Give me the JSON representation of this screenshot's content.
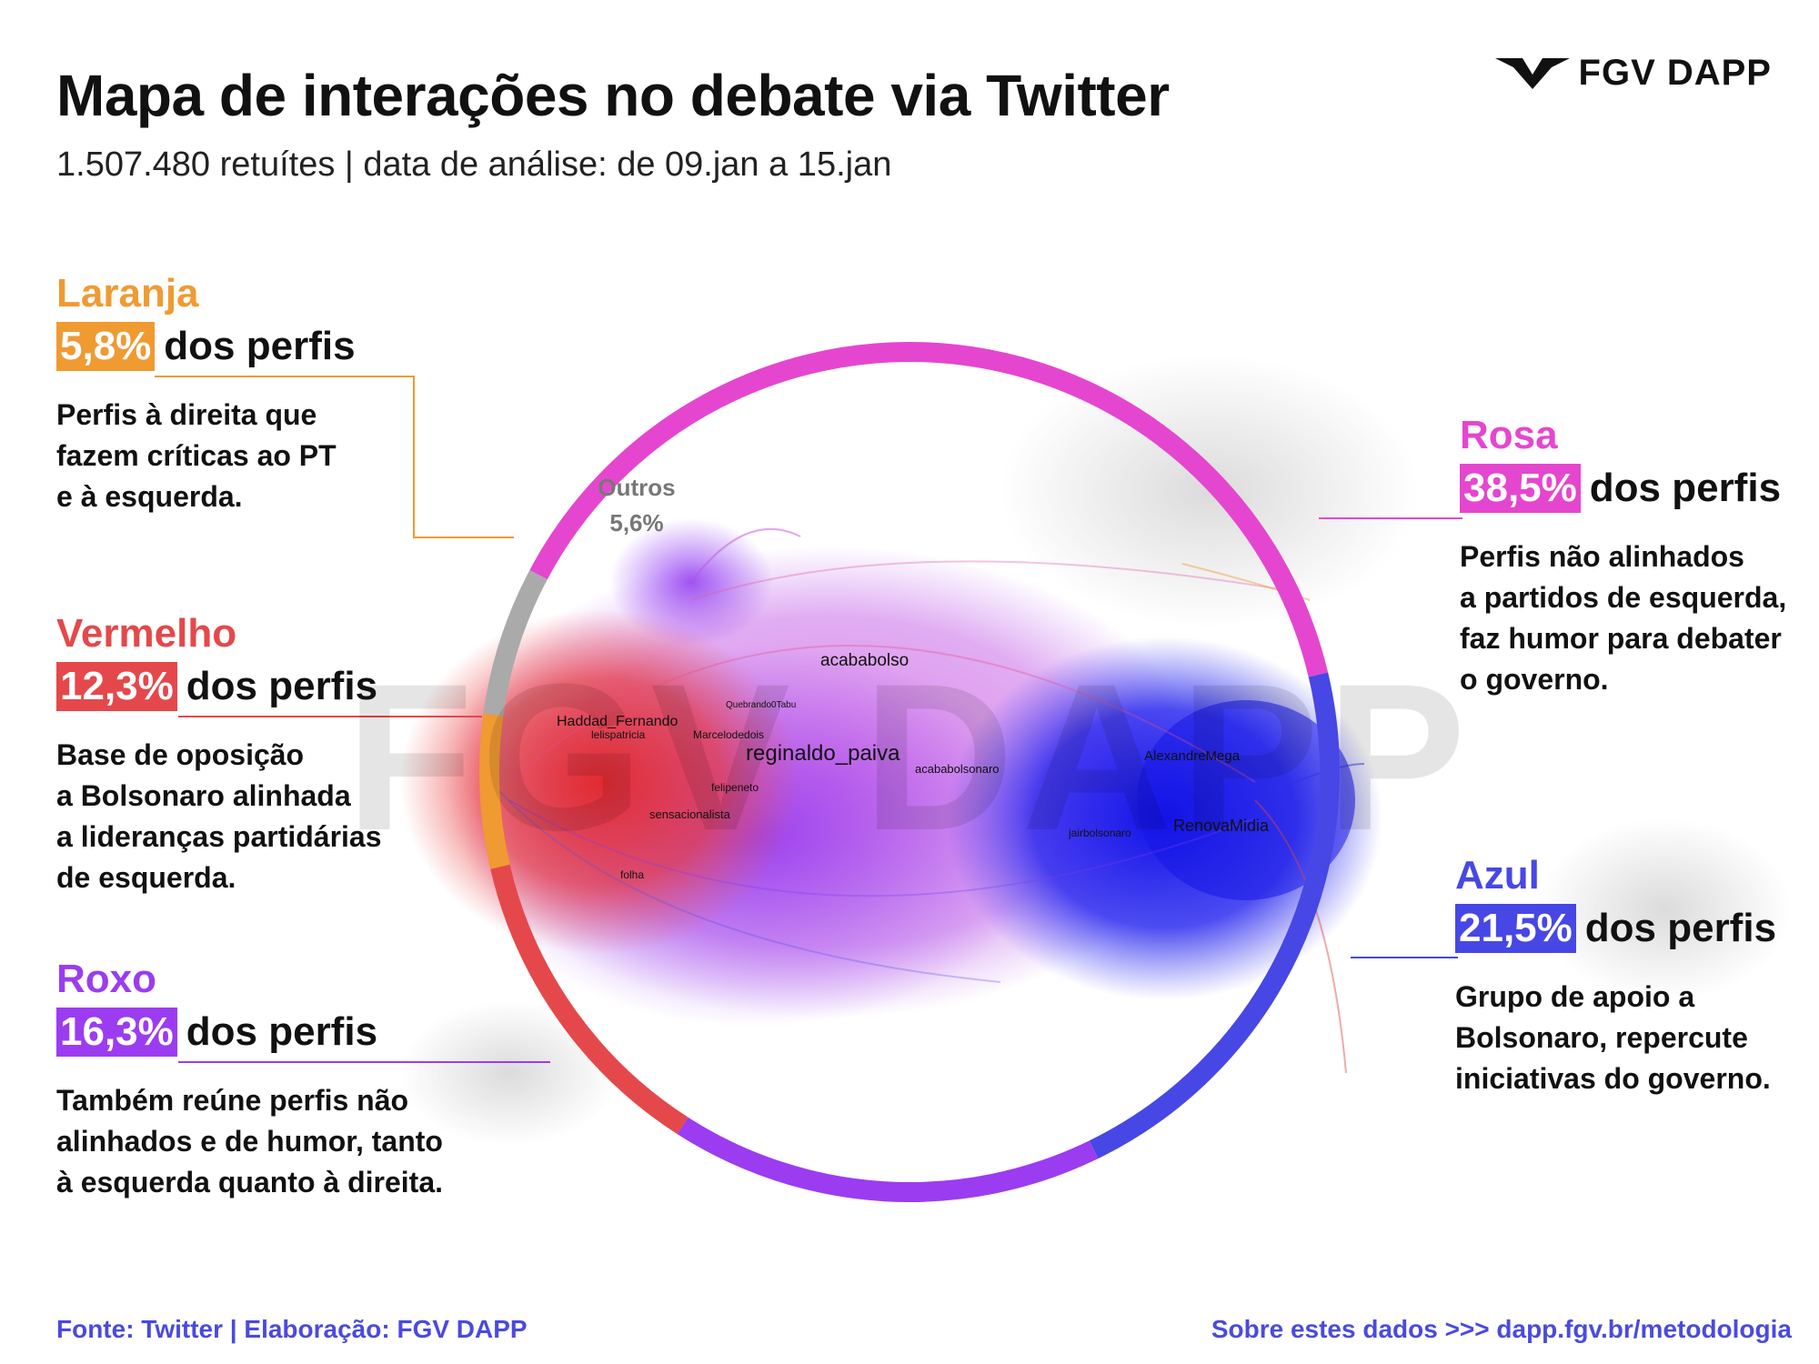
{
  "header": {
    "title": "Mapa de interações no debate via Twitter",
    "subtitle": "1.507.480 retuítes | data de análise: de 09.jan a 15.jan"
  },
  "logo": {
    "text": "FGV DAPP"
  },
  "watermark": {
    "text": "FGV DAPP"
  },
  "ring": {
    "segments": [
      {
        "name": "Rosa",
        "color": "#e546cf",
        "percent": 38.5
      },
      {
        "name": "Azul",
        "color": "#4747e6",
        "percent": 21.5
      },
      {
        "name": "Roxo",
        "color": "#9b3cf0",
        "percent": 16.3
      },
      {
        "name": "Vermelho",
        "color": "#e5484a",
        "percent": 12.3
      },
      {
        "name": "Laranja",
        "color": "#f09a32",
        "percent": 5.8
      },
      {
        "name": "Outros",
        "color": "#aaaaaa",
        "percent": 5.6
      }
    ],
    "outros_label": "Outros",
    "outros_value": "5,6%"
  },
  "groups": {
    "laranja": {
      "name": "Laranja",
      "percent": "5,8%",
      "suffix": "dos perfis",
      "color": "#f09a32",
      "desc": [
        "Perfis à direita que",
        "fazem críticas ao PT",
        "e à esquerda."
      ]
    },
    "vermelho": {
      "name": "Vermelho",
      "percent": "12,3%",
      "suffix": "dos perfis",
      "color": "#e5484a",
      "desc": [
        "Base de oposição",
        "a Bolsonaro alinhada",
        "a lideranças partidárias",
        "de esquerda."
      ]
    },
    "roxo": {
      "name": "Roxo",
      "percent": "16,3%",
      "suffix": "dos perfis",
      "color": "#9b3cf0",
      "desc": [
        "Também reúne perfis não",
        "alinhados e de humor, tanto",
        "à esquerda quanto à direita."
      ]
    },
    "rosa": {
      "name": "Rosa",
      "percent": "38,5%",
      "suffix": "dos perfis",
      "color": "#e546cf",
      "desc": [
        "Perfis não alinhados",
        "a partidos de esquerda,",
        "faz humor para debater",
        "o governo."
      ]
    },
    "azul": {
      "name": "Azul",
      "percent": "21,5%",
      "suffix": "dos perfis",
      "color": "#4747e6",
      "desc": [
        "Grupo de apoio a",
        "Bolsonaro, repercute",
        "iniciativas do governo."
      ]
    }
  },
  "network_labels": {
    "acababolso": "acababolso",
    "haddad": "Haddad_Fernando",
    "lelis": "lelispatricia",
    "marcelo": "Marcelodedois",
    "reginaldo": "reginaldo_paiva",
    "acababolsonaro": "acababolsonaro",
    "felipeneto": "felipeneto",
    "sensacionalista": "sensacionalista",
    "folha": "folha",
    "quebrando": "Quebrando0Tabu",
    "alexandre": "AlexandreMega",
    "renova": "RenovaMidia",
    "jair": "jairbolsonaro"
  },
  "footer": {
    "source": "Fonte: Twitter | Elaboração: FGV DAPP",
    "method": "Sobre estes dados >>> dapp.fgv.br/metodologia"
  }
}
